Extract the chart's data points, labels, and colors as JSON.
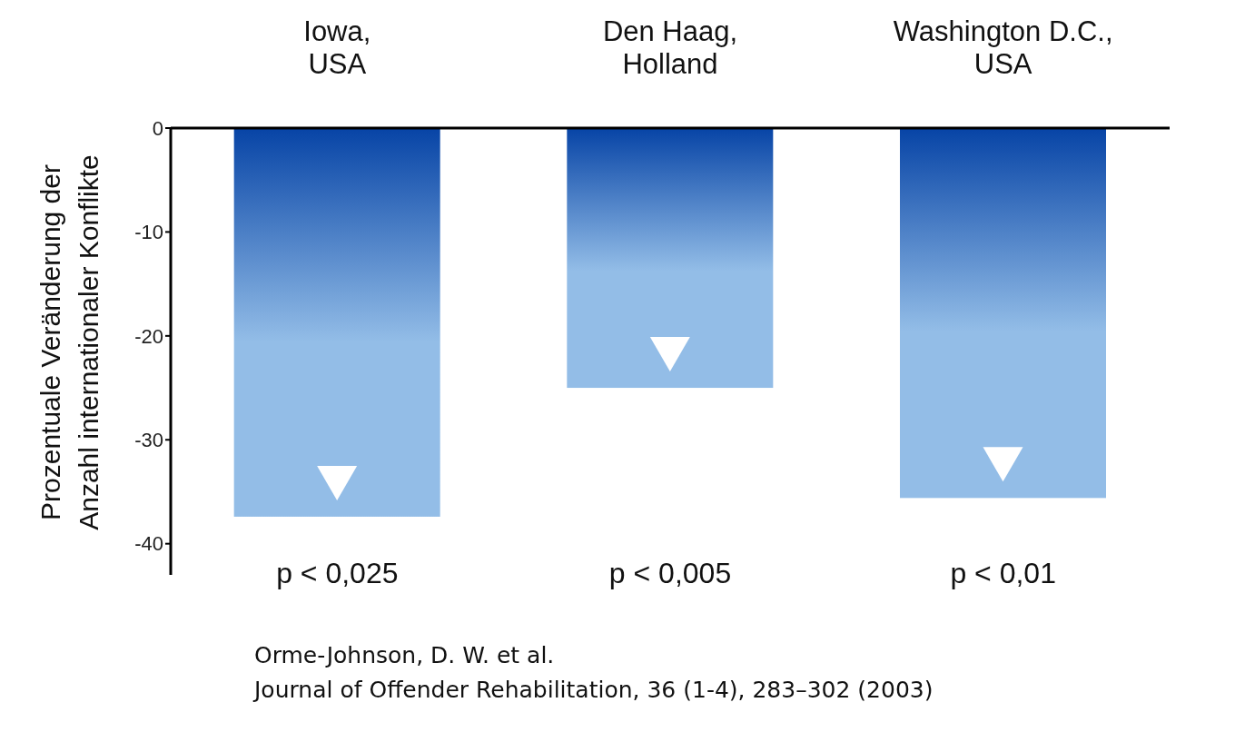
{
  "chart_data": {
    "type": "bar",
    "ylabel": "Prozentuale Veränderung der\nAnzahl internationaler Konflikte",
    "categories": [
      "Iowa,\nUSA",
      "Den Haag,\nHolland",
      "Washington D.C.,\nUSA"
    ],
    "values": [
      -37.4,
      -25.0,
      -35.6
    ],
    "color": "#93bde7",
    "ylim": [
      -43,
      0
    ],
    "yticks": [
      0,
      -10,
      -20,
      -30,
      -40
    ],
    "grid": false,
    "legend": false,
    "annotations": [
      "p < 0,025",
      "p < 0,005",
      "p < 0,01",
      "Orme-Johnson, D. W. et al.",
      "Journal of Offender Rehabilitation, 36 (1-4), 283–302 (2003)"
    ]
  }
}
